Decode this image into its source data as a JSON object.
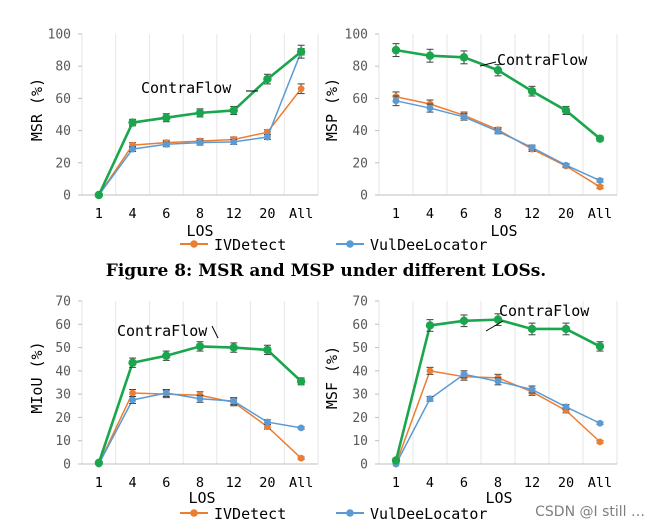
{
  "figure8": {
    "caption": "Figure 8: MSR and MSP under different LOSs.",
    "legend": [
      {
        "name": "IVDetect",
        "color": "#ed7d31"
      },
      {
        "name": "VulDeeLocator",
        "color": "#5b9bd5"
      }
    ]
  },
  "bottom_legend": [
    {
      "name": "IVDetect",
      "color": "#ed7d31"
    },
    {
      "name": "VulDeeLocator",
      "color": "#5b9bd5"
    }
  ],
  "watermark": "CSDN @I still …",
  "chart_data": [
    {
      "type": "line",
      "ylabel": "MSR (%)",
      "xlabel": "LOS",
      "categories": [
        "1",
        "4",
        "6",
        "8",
        "12",
        "20",
        "All"
      ],
      "ylim": [
        0,
        100
      ],
      "yticks": [
        0,
        20,
        40,
        60,
        80,
        100
      ],
      "annotation": "ContraFlow",
      "series": [
        {
          "name": "ContraFlow",
          "color": "#1aa64d",
          "values": [
            0,
            45,
            48,
            51,
            52.5,
            72,
            89
          ],
          "errors": [
            0,
            2,
            2.5,
            2.5,
            2.5,
            3,
            4
          ]
        },
        {
          "name": "IVDetect",
          "color": "#ed7d31",
          "values": [
            0,
            31,
            32.5,
            33.5,
            34.5,
            39,
            66
          ],
          "errors": [
            0,
            1.5,
            1.5,
            1.5,
            1.5,
            1.5,
            3
          ]
        },
        {
          "name": "VulDeeLocator",
          "color": "#5b9bd5",
          "values": [
            0,
            28.5,
            31.5,
            32.5,
            33,
            36,
            89
          ],
          "errors": [
            0,
            1.5,
            1.5,
            1.5,
            1.5,
            1.5,
            2
          ]
        }
      ]
    },
    {
      "type": "line",
      "ylabel": "MSP (%)",
      "xlabel": "LOS",
      "categories": [
        "1",
        "4",
        "6",
        "8",
        "12",
        "20",
        "All"
      ],
      "ylim": [
        0,
        100
      ],
      "yticks": [
        0,
        20,
        40,
        60,
        80,
        100
      ],
      "annotation": "ContraFlow",
      "series": [
        {
          "name": "ContraFlow",
          "color": "#1aa64d",
          "values": [
            90,
            86.5,
            85.5,
            77.5,
            64.5,
            52.5,
            35
          ],
          "errors": [
            4,
            4,
            4,
            3.5,
            3,
            2.5,
            1.5
          ]
        },
        {
          "name": "IVDetect",
          "color": "#ed7d31",
          "values": [
            61,
            56.5,
            49.5,
            40.5,
            28.5,
            18,
            5
          ],
          "errors": [
            3,
            2.5,
            2,
            1.5,
            1.5,
            1,
            1
          ]
        },
        {
          "name": "VulDeeLocator",
          "color": "#5b9bd5",
          "values": [
            58.5,
            54,
            48.5,
            39.5,
            29.5,
            18.5,
            9
          ],
          "errors": [
            3,
            2.5,
            2,
            1.5,
            1.5,
            1,
            1
          ]
        }
      ]
    },
    {
      "type": "line",
      "ylabel": "MIoU (%)",
      "xlabel": "LOS",
      "categories": [
        "1",
        "4",
        "6",
        "8",
        "12",
        "20",
        "All"
      ],
      "ylim": [
        0,
        70
      ],
      "yticks": [
        0,
        10,
        20,
        30,
        40,
        50,
        60,
        70
      ],
      "annotation": "ContraFlow",
      "series": [
        {
          "name": "ContraFlow",
          "color": "#1aa64d",
          "values": [
            0.5,
            43.5,
            46.5,
            50.5,
            50,
            49,
            35.5
          ],
          "errors": [
            0.5,
            2,
            2,
            2,
            2,
            2,
            1.5
          ]
        },
        {
          "name": "IVDetect",
          "color": "#ed7d31",
          "values": [
            0,
            30.5,
            30,
            29.5,
            26.5,
            16,
            2.5
          ],
          "errors": [
            0,
            1.5,
            1.5,
            1.5,
            1.5,
            1,
            0.5
          ]
        },
        {
          "name": "VulDeeLocator",
          "color": "#5b9bd5",
          "values": [
            0,
            27.5,
            30.5,
            28,
            27,
            18,
            15.5
          ],
          "errors": [
            0,
            1.5,
            1.5,
            1.5,
            1.5,
            1,
            0.5
          ]
        }
      ]
    },
    {
      "type": "line",
      "ylabel": "MSF (%)",
      "xlabel": "LOS",
      "categories": [
        "1",
        "4",
        "6",
        "8",
        "12",
        "20",
        "All"
      ],
      "ylim": [
        0,
        70
      ],
      "yticks": [
        0,
        10,
        20,
        30,
        40,
        50,
        60,
        70
      ],
      "annotation": "ContraFlow",
      "series": [
        {
          "name": "ContraFlow",
          "color": "#1aa64d",
          "values": [
            1.5,
            59.5,
            61.5,
            62,
            58,
            58,
            50.5
          ],
          "errors": [
            1,
            2.5,
            2.5,
            2.5,
            2.5,
            2.5,
            2
          ]
        },
        {
          "name": "IVDetect",
          "color": "#ed7d31",
          "values": [
            0,
            40,
            37.5,
            37,
            31,
            23,
            9.5
          ],
          "errors": [
            0,
            1.5,
            1.5,
            1.5,
            1.5,
            1,
            0.5
          ]
        },
        {
          "name": "VulDeeLocator",
          "color": "#5b9bd5",
          "values": [
            0,
            28,
            38.5,
            35.5,
            32,
            24.5,
            17.5
          ],
          "errors": [
            0,
            1,
            1.5,
            1.5,
            1.5,
            1,
            0.5
          ]
        }
      ]
    }
  ]
}
